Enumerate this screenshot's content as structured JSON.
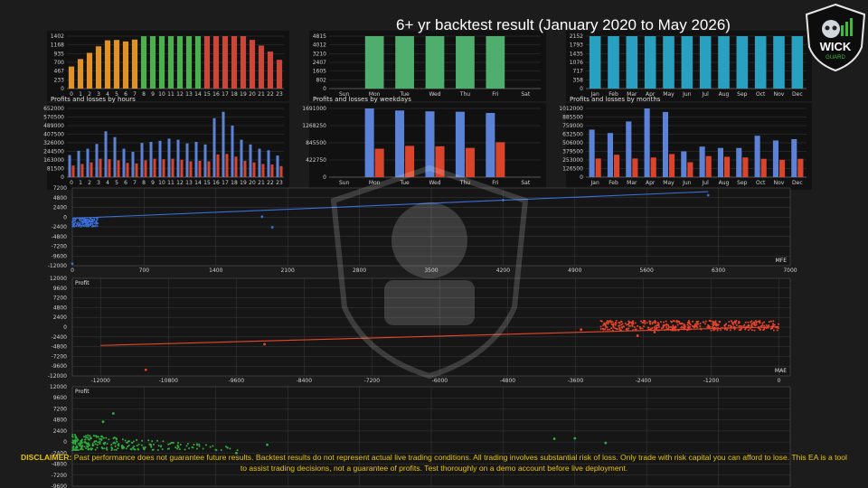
{
  "header": {
    "title": "6+ yr backtest result (January 2020 to May 2026)"
  },
  "logo": {
    "text": "WICK",
    "subtext": "GUARD"
  },
  "disclaimer": {
    "label": "DISCLAIMER:",
    "text": " Past performance does not guarantee future results. Backtest results do not represent actual live trading conditions. All trading involves substantial risk of loss. Only trade with risk capital you can afford to lose. This EA is a tool to assist trading decisions, not a guarantee of profits.  Test thoroughly on a demo account before live deployment."
  },
  "colors": {
    "orange": "#e0922a",
    "green": "#4caf50",
    "red": "#c9473a",
    "teal_green": "#4fae6e",
    "cyan": "#2aa0c0",
    "blue": "#5b82d6",
    "pl_red": "#d9442a",
    "scatter_blue": "#3a6fd8",
    "scatter_red": "#e8452a",
    "scatter_green": "#2fae3e"
  },
  "chart_data": [
    {
      "id": "entries-hours",
      "type": "bar",
      "title": "",
      "categories": [
        "0",
        "1",
        "2",
        "3",
        "4",
        "5",
        "6",
        "7",
        "8",
        "9",
        "10",
        "11",
        "12",
        "13",
        "14",
        "15",
        "16",
        "17",
        "18",
        "19",
        "20",
        "21",
        "22",
        "23"
      ],
      "values": [
        590,
        790,
        955,
        1130,
        1290,
        1300,
        1260,
        1310,
        1400,
        1402,
        1402,
        1402,
        1402,
        1402,
        1402,
        1402,
        1402,
        1402,
        1402,
        1402,
        1302,
        1150,
        990,
        770
      ],
      "yticks": [
        "0",
        "233",
        "467",
        "700",
        "935",
        "1168",
        "1402"
      ],
      "ylim": [
        0,
        1402
      ]
    },
    {
      "id": "entries-weekdays",
      "type": "bar",
      "title": "",
      "categories": [
        "Sun",
        "Mon",
        "Tue",
        "Wed",
        "Thu",
        "Fri",
        "Sat"
      ],
      "values": [
        0,
        4815,
        4815,
        4815,
        4815,
        4815,
        0
      ],
      "yticks": [
        "0",
        "802",
        "1605",
        "2407",
        "3210",
        "4012",
        "4815"
      ],
      "ylim": [
        0,
        4815
      ]
    },
    {
      "id": "entries-months",
      "type": "bar",
      "title": "",
      "categories": [
        "Jan",
        "Feb",
        "Mar",
        "Apr",
        "May",
        "Jun",
        "Jul",
        "Aug",
        "Sep",
        "Oct",
        "Nov",
        "Dec"
      ],
      "values": [
        2152,
        2152,
        2152,
        2152,
        2152,
        2152,
        2152,
        2152,
        2152,
        2152,
        2152,
        2152
      ],
      "yticks": [
        "0",
        "358",
        "717",
        "1076",
        "1435",
        "1793",
        "2152"
      ],
      "ylim": [
        0,
        2152
      ]
    },
    {
      "id": "pl-hours",
      "type": "bar",
      "title": "Profits and losses by hours",
      "categories": [
        "0",
        "1",
        "2",
        "3",
        "4",
        "5",
        "6",
        "7",
        "8",
        "9",
        "10",
        "11",
        "12",
        "13",
        "14",
        "15",
        "16",
        "17",
        "18",
        "19",
        "20",
        "21",
        "22",
        "23"
      ],
      "series": [
        {
          "values": [
            210000,
            250000,
            270000,
            315000,
            435000,
            380000,
            270000,
            240000,
            325000,
            335000,
            345000,
            365000,
            355000,
            320000,
            335000,
            310000,
            560000,
            620000,
            490000,
            355000,
            310000,
            270000,
            255000,
            205000
          ]
        },
        {
          "values": [
            110000,
            125000,
            140000,
            175000,
            170000,
            160000,
            135000,
            130000,
            160000,
            175000,
            170000,
            175000,
            165000,
            150000,
            155000,
            150000,
            215000,
            220000,
            195000,
            155000,
            140000,
            125000,
            120000,
            105000
          ]
        }
      ],
      "yticks": [
        "0",
        "81500",
        "163000",
        "244500",
        "326000",
        "407500",
        "489000",
        "570500",
        "652000"
      ],
      "ylim": [
        0,
        652000
      ]
    },
    {
      "id": "pl-weekdays",
      "type": "bar",
      "title": "Profits and losses by weekdays",
      "categories": [
        "Sun",
        "Mon",
        "Tue",
        "Wed",
        "Thu",
        "Fri",
        "Sat"
      ],
      "series": [
        {
          "values": [
            0,
            1691000,
            1640000,
            1620000,
            1610000,
            1580000,
            0
          ]
        },
        {
          "values": [
            0,
            700000,
            770000,
            760000,
            720000,
            860000,
            0
          ]
        }
      ],
      "yticks": [
        "0",
        "422750",
        "845500",
        "1268250",
        "1691000"
      ],
      "ylim": [
        0,
        1691000
      ]
    },
    {
      "id": "pl-months",
      "type": "bar",
      "title": "Profits and losses by months",
      "categories": [
        "Jan",
        "Feb",
        "Mar",
        "Apr",
        "May",
        "Jun",
        "Jul",
        "Aug",
        "Sep",
        "Oct",
        "Nov",
        "Dec"
      ],
      "series": [
        {
          "values": [
            700000,
            650000,
            820000,
            1012000,
            960000,
            380000,
            450000,
            430000,
            430000,
            610000,
            540000,
            560000
          ]
        },
        {
          "values": [
            275000,
            330000,
            275000,
            290000,
            340000,
            220000,
            310000,
            300000,
            290000,
            270000,
            255000,
            270000
          ]
        }
      ],
      "yticks": [
        "0",
        "126500",
        "253000",
        "379500",
        "506000",
        "632500",
        "759000",
        "885500",
        "1012000"
      ],
      "ylim": [
        0,
        1012000
      ]
    },
    {
      "id": "scatter-mfe",
      "type": "scatter",
      "title": "",
      "xlabel": "MFE",
      "xticks": [
        "0",
        "700",
        "1400",
        "2100",
        "2800",
        "3500",
        "4200",
        "4900",
        "5600",
        "6300",
        "7000"
      ],
      "yticks": [
        "-12000",
        "-9600",
        "-7200",
        "-4800",
        "-2400",
        "0",
        "2400",
        "4800",
        "7200"
      ],
      "xlim": [
        0,
        7000
      ],
      "ylim": [
        -12000,
        7200
      ],
      "trend": [
        [
          0,
          -300
        ],
        [
          6200,
          6300
        ]
      ],
      "points": [
        [
          1850,
          100
        ],
        [
          1950,
          -2500
        ],
        [
          4200,
          4200
        ],
        [
          6200,
          5400
        ],
        [
          0,
          -11500
        ]
      ]
    },
    {
      "id": "scatter-mae",
      "type": "scatter",
      "title": "Profit",
      "xlabel": "MAE",
      "xticks": [
        "-12000",
        "-10800",
        "-9600",
        "-8400",
        "-7200",
        "-6000",
        "-4800",
        "-3600",
        "-2400",
        "-1200",
        "0"
      ],
      "yticks": [
        "-12000",
        "-9600",
        "-7200",
        "-4800",
        "-2400",
        "0",
        "2400",
        "4800",
        "7200",
        "9600",
        "12000"
      ],
      "xlim": [
        -12500,
        200
      ],
      "ylim": [
        -12000,
        12000
      ],
      "trend": [
        [
          -12000,
          -4500
        ],
        [
          0,
          100
        ]
      ],
      "points": [
        [
          -9100,
          -4200
        ],
        [
          -11200,
          -10500
        ],
        [
          -3500,
          -600
        ],
        [
          -2800,
          -800
        ],
        [
          -2500,
          -2100
        ],
        [
          -2200,
          -1200
        ]
      ]
    },
    {
      "id": "scatter-third",
      "type": "scatter",
      "title": "Profit",
      "xlabel": "",
      "yticks": [
        "-9600",
        "-7200",
        "-4800",
        "-2400",
        "0",
        "2400",
        "4800",
        "7200",
        "9600",
        "12000"
      ],
      "xlim": [
        0,
        7000
      ],
      "ylim": [
        -9600,
        12000
      ],
      "points": [
        [
          300,
          4400
        ],
        [
          400,
          6200
        ],
        [
          500,
          -1200
        ],
        [
          700,
          -1500
        ],
        [
          1900,
          -600
        ],
        [
          1600,
          -2400
        ],
        [
          4700,
          700
        ],
        [
          4900,
          800
        ],
        [
          5200,
          -200
        ]
      ]
    }
  ]
}
